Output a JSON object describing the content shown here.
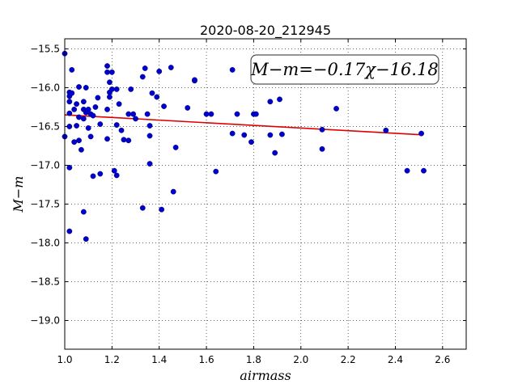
{
  "chart_data": {
    "type": "scatter",
    "title": "2020-08-20_212945",
    "xlabel": "airmass",
    "ylabel": "M−m",
    "annotation": "M−m=−0.17χ−16.18",
    "xlim": [
      1.0,
      2.7
    ],
    "ylim": [
      -19.37,
      -15.37
    ],
    "xticks": [
      "1.0",
      "1.2",
      "1.4",
      "1.6",
      "1.8",
      "2.0",
      "2.2",
      "2.4",
      "2.6"
    ],
    "yticks": [
      "−15.5",
      "−16.0",
      "−16.5",
      "−17.0",
      "−17.5",
      "−18.0",
      "−18.5",
      "−19.0"
    ],
    "grid": true,
    "colors": {
      "points": "#0000cc",
      "fit": "#e00000"
    },
    "fit": {
      "slope": -0.17,
      "intercept": -16.18,
      "x_range": [
        1.0,
        2.51
      ]
    },
    "points": [
      [
        1.0,
        -15.56
      ],
      [
        1.0,
        -16.63
      ],
      [
        1.02,
        -16.06
      ],
      [
        1.02,
        -16.11
      ],
      [
        1.02,
        -16.18
      ],
      [
        1.02,
        -16.33
      ],
      [
        1.02,
        -16.5
      ],
      [
        1.02,
        -17.03
      ],
      [
        1.02,
        -17.85
      ],
      [
        1.03,
        -15.77
      ],
      [
        1.03,
        -16.07
      ],
      [
        1.04,
        -16.28
      ],
      [
        1.04,
        -16.7
      ],
      [
        1.05,
        -16.21
      ],
      [
        1.05,
        -16.49
      ],
      [
        1.06,
        -16.38
      ],
      [
        1.06,
        -16.68
      ],
      [
        1.06,
        -15.99
      ],
      [
        1.07,
        -16.8
      ],
      [
        1.08,
        -16.18
      ],
      [
        1.08,
        -16.28
      ],
      [
        1.08,
        -16.4
      ],
      [
        1.08,
        -17.6
      ],
      [
        1.09,
        -17.95
      ],
      [
        1.09,
        -16.0
      ],
      [
        1.09,
        -16.32
      ],
      [
        1.1,
        -16.28
      ],
      [
        1.1,
        -16.52
      ],
      [
        1.11,
        -16.63
      ],
      [
        1.11,
        -16.34
      ],
      [
        1.12,
        -17.14
      ],
      [
        1.12,
        -16.36
      ],
      [
        1.13,
        -16.25
      ],
      [
        1.14,
        -16.13
      ],
      [
        1.15,
        -16.47
      ],
      [
        1.15,
        -17.11
      ],
      [
        1.18,
        -15.8
      ],
      [
        1.18,
        -15.72
      ],
      [
        1.18,
        -16.28
      ],
      [
        1.18,
        -16.66
      ],
      [
        1.19,
        -15.93
      ],
      [
        1.19,
        -16.06
      ],
      [
        1.19,
        -16.12
      ],
      [
        1.2,
        -15.8
      ],
      [
        1.2,
        -16.02
      ],
      [
        1.21,
        -17.07
      ],
      [
        1.22,
        -17.13
      ],
      [
        1.22,
        -16.02
      ],
      [
        1.22,
        -16.48
      ],
      [
        1.23,
        -16.21
      ],
      [
        1.24,
        -16.55
      ],
      [
        1.25,
        -16.67
      ],
      [
        1.27,
        -16.68
      ],
      [
        1.27,
        -16.34
      ],
      [
        1.28,
        -16.02
      ],
      [
        1.29,
        -16.34
      ],
      [
        1.3,
        -16.4
      ],
      [
        1.33,
        -17.55
      ],
      [
        1.33,
        -15.86
      ],
      [
        1.34,
        -15.75
      ],
      [
        1.35,
        -16.34
      ],
      [
        1.36,
        -16.49
      ],
      [
        1.36,
        -16.62
      ],
      [
        1.36,
        -16.98
      ],
      [
        1.37,
        -16.07
      ],
      [
        1.39,
        -16.12
      ],
      [
        1.4,
        -15.79
      ],
      [
        1.41,
        -17.57
      ],
      [
        1.42,
        -16.24
      ],
      [
        1.45,
        -15.74
      ],
      [
        1.46,
        -17.34
      ],
      [
        1.47,
        -16.77
      ],
      [
        1.52,
        -16.26
      ],
      [
        1.55,
        -15.91
      ],
      [
        1.55,
        -15.9
      ],
      [
        1.6,
        -16.34
      ],
      [
        1.62,
        -16.34
      ],
      [
        1.64,
        -17.08
      ],
      [
        1.71,
        -16.59
      ],
      [
        1.71,
        -15.77
      ],
      [
        1.73,
        -16.34
      ],
      [
        1.76,
        -16.61
      ],
      [
        1.79,
        -16.7
      ],
      [
        1.8,
        -16.34
      ],
      [
        1.81,
        -16.34
      ],
      [
        1.87,
        -16.61
      ],
      [
        1.87,
        -16.18
      ],
      [
        1.89,
        -16.84
      ],
      [
        1.91,
        -16.15
      ],
      [
        1.92,
        -16.6
      ],
      [
        2.09,
        -16.54
      ],
      [
        2.09,
        -16.79
      ],
      [
        2.15,
        -16.27
      ],
      [
        2.36,
        -16.55
      ],
      [
        2.45,
        -17.07
      ],
      [
        2.51,
        -16.59
      ],
      [
        2.52,
        -17.07
      ]
    ]
  }
}
